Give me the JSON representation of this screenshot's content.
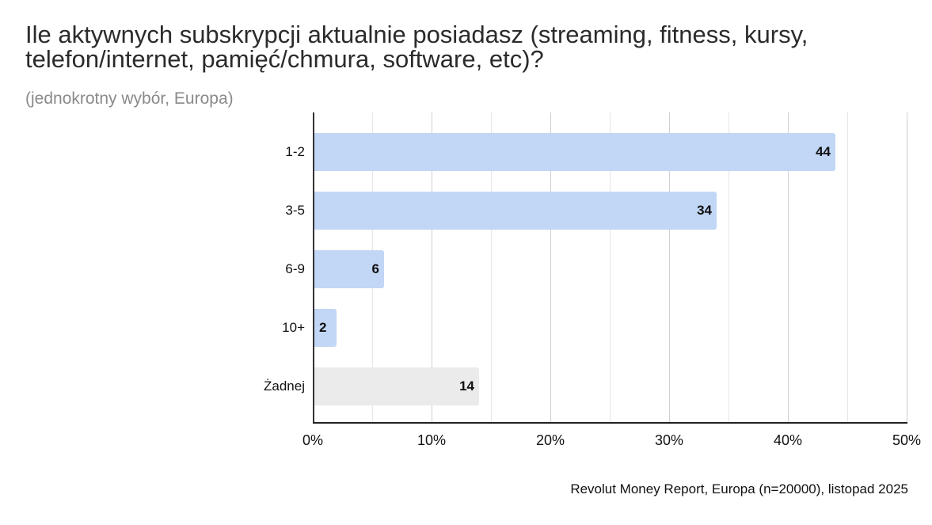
{
  "title": "Ile aktywnych subskrypcji aktualnie posiadasz (streaming, fitness, kursy, telefon/internet, pamięć/chmura, software, etc)?",
  "subtitle": "(jednokrotny wybór, Europa)",
  "source": "Revolut Money Report, Europa (n=20000), listopad 2025",
  "colors": {
    "bar_primary": "#c2d6f6",
    "bar_none": "#ebebeb"
  },
  "ticks": [
    "0%",
    "10%",
    "20%",
    "30%",
    "40%",
    "50%"
  ],
  "chart_data": {
    "type": "bar",
    "orientation": "horizontal",
    "title": "Ile aktywnych subskrypcji aktualnie posiadasz (streaming, fitness, kursy, telefon/internet, pamięć/chmura, software, etc)?",
    "subtitle": "(jednokrotny wybór, Europa)",
    "categories": [
      "1-2",
      "3-5",
      "6-9",
      "10+",
      "Żadnej"
    ],
    "values": [
      44,
      34,
      6,
      2,
      14
    ],
    "unit": "%",
    "xlabel": "",
    "ylabel": "",
    "xlim": [
      0,
      50
    ],
    "xticks": [
      "0%",
      "10%",
      "20%",
      "30%",
      "40%",
      "50%"
    ],
    "grid": true,
    "legend": "none",
    "bar_colors": [
      "#c2d6f6",
      "#c2d6f6",
      "#c2d6f6",
      "#c2d6f6",
      "#ebebeb"
    ],
    "annotation": "Revolut Money Report, Europa (n=20000), listopad 2025"
  }
}
